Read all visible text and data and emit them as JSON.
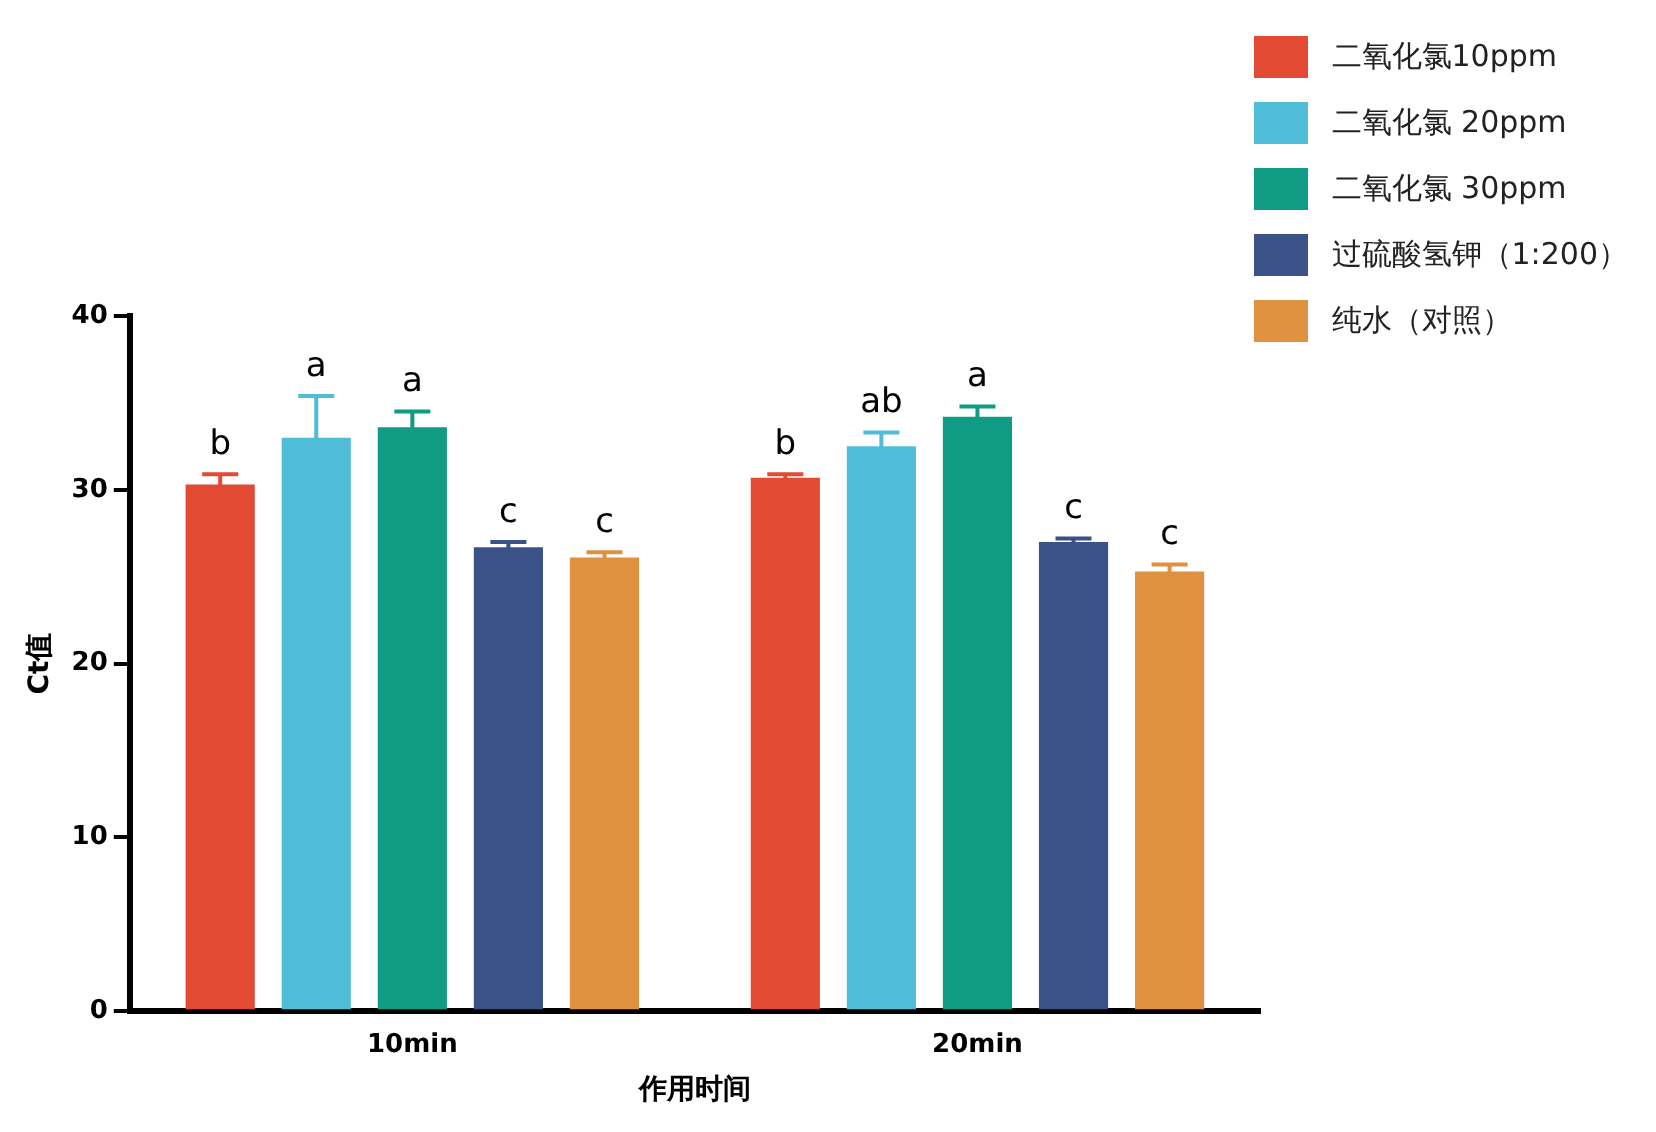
{
  "chart_data": {
    "type": "bar",
    "xlabel": "作用时间",
    "ylabel": "Ct值",
    "categories": [
      "10min",
      "20min"
    ],
    "ylim": [
      0,
      40
    ],
    "yticks": [
      0,
      10,
      20,
      30,
      40
    ],
    "grid": false,
    "legend": "top right",
    "series": [
      {
        "name": "二氧化氯10ppm",
        "color": "#e24a33",
        "values": [
          30.3,
          30.7
        ],
        "errors": [
          0.6,
          0.2
        ],
        "value_labels": [
          "b",
          "b"
        ]
      },
      {
        "name": "二氧化氯 20ppm",
        "color": "#4fbcd8",
        "values": [
          33.0,
          32.5
        ],
        "errors": [
          2.4,
          0.8
        ],
        "value_labels": [
          "a",
          "ab"
        ]
      },
      {
        "name": "二氧化氯 30ppm",
        "color": "#0f9b84",
        "values": [
          33.6,
          34.2
        ],
        "errors": [
          0.9,
          0.6
        ],
        "value_labels": [
          "a",
          "a"
        ]
      },
      {
        "name": "过硫酸氢钾（1:200）",
        "color": "#3b5288",
        "values": [
          26.7,
          27.0
        ],
        "errors": [
          0.3,
          0.2
        ],
        "value_labels": [
          "c",
          "c"
        ]
      },
      {
        "name": "纯水（对照）",
        "color": "#e0913f",
        "values": [
          26.1,
          25.3
        ],
        "errors": [
          0.3,
          0.4
        ],
        "value_labels": [
          "c",
          "c"
        ]
      }
    ]
  }
}
